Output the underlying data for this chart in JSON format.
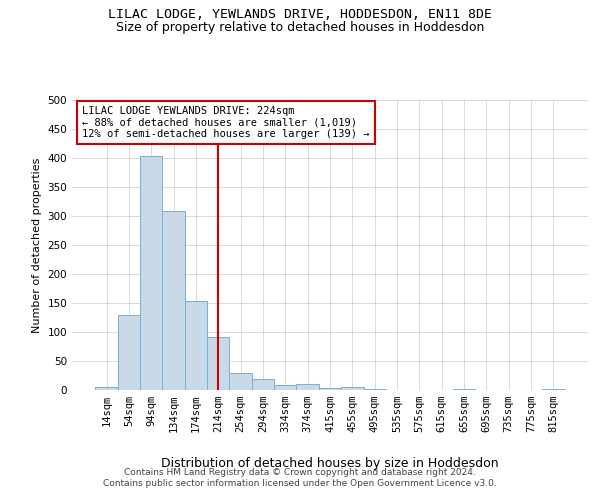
{
  "title1": "LILAC LODGE, YEWLANDS DRIVE, HODDESDON, EN11 8DE",
  "title2": "Size of property relative to detached houses in Hoddesdon",
  "xlabel": "Distribution of detached houses by size in Hoddesdon",
  "ylabel": "Number of detached properties",
  "categories": [
    "14sqm",
    "54sqm",
    "94sqm",
    "134sqm",
    "174sqm",
    "214sqm",
    "254sqm",
    "294sqm",
    "334sqm",
    "374sqm",
    "415sqm",
    "455sqm",
    "495sqm",
    "535sqm",
    "575sqm",
    "615sqm",
    "655sqm",
    "695sqm",
    "735sqm",
    "775sqm",
    "815sqm"
  ],
  "values": [
    5,
    130,
    403,
    308,
    153,
    92,
    29,
    19,
    8,
    11,
    4,
    5,
    1,
    0,
    0,
    0,
    1,
    0,
    0,
    0,
    1
  ],
  "bar_color": "#c9d9e8",
  "bar_edge_color": "#7bafd4",
  "vline_x": 5,
  "vline_color": "#cc0000",
  "vline_linewidth": 1.5,
  "annotation_text": "LILAC LODGE YEWLANDS DRIVE: 224sqm\n← 88% of detached houses are smaller (1,019)\n12% of semi-detached houses are larger (139) →",
  "annotation_box_color": "#ffffff",
  "annotation_box_edge_color": "#cc0000",
  "ylim": [
    0,
    500
  ],
  "yticks": [
    0,
    50,
    100,
    150,
    200,
    250,
    300,
    350,
    400,
    450,
    500
  ],
  "footer1": "Contains HM Land Registry data © Crown copyright and database right 2024.",
  "footer2": "Contains public sector information licensed under the Open Government Licence v3.0.",
  "bg_color": "#ffffff",
  "grid_color": "#cccccc",
  "title1_fontsize": 9.5,
  "title2_fontsize": 9,
  "xlabel_fontsize": 9,
  "ylabel_fontsize": 8,
  "tick_fontsize": 7.5,
  "annotation_fontsize": 7.5,
  "footer_fontsize": 6.5
}
